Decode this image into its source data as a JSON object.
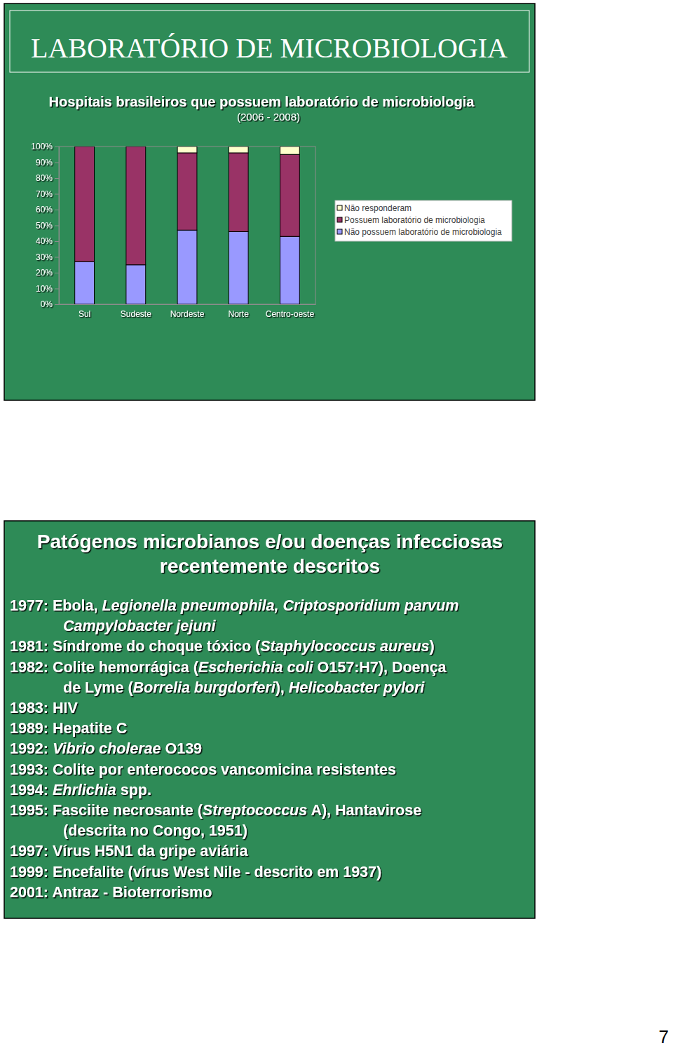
{
  "slide_header": "LABORATÓRIO DE MICROBIOLOGIA",
  "chart_data": {
    "type": "bar",
    "stacked": true,
    "title": "Hospitais brasileiros que possuem laboratório de microbiologia",
    "subtitle": "(2006 - 2008)",
    "categories": [
      "Sul",
      "Sudeste",
      "Nordeste",
      "Norte",
      "Centro-oeste"
    ],
    "series": [
      {
        "name": "Não responderam",
        "color": "#ffffcc",
        "values": [
          0,
          0,
          4,
          4,
          5
        ]
      },
      {
        "name": "Possuem laboratório de microbiologia",
        "color": "#993366",
        "values": [
          73,
          75,
          49,
          50,
          52
        ]
      },
      {
        "name": "Não possuem laboratório de microbiologia",
        "color": "#9999ff",
        "values": [
          27,
          25,
          47,
          46,
          43
        ]
      }
    ],
    "ylim": [
      0,
      100
    ],
    "yticks": [
      {
        "value": 0,
        "label": "0%"
      },
      {
        "value": 10,
        "label": "10%"
      },
      {
        "value": 20,
        "label": "20%"
      },
      {
        "value": 30,
        "label": "30%"
      },
      {
        "value": 40,
        "label": "40%"
      },
      {
        "value": 50,
        "label": "50%"
      },
      {
        "value": 60,
        "label": "60%"
      },
      {
        "value": 70,
        "label": "70%"
      },
      {
        "value": 80,
        "label": "80%"
      },
      {
        "value": 90,
        "label": "90%"
      },
      {
        "value": 100,
        "label": "100%"
      }
    ],
    "grid": false,
    "legend": "right"
  },
  "slide2": {
    "title": [
      "Patógenos microbianos e/ou doenças infecciosas",
      "recentemente descritos"
    ],
    "items": [
      {
        "lines": [
          [
            {
              "text": "1977: Ebola, "
            },
            {
              "text": "Legionella pneumophila, Criptosporidium parvum",
              "italic": true
            }
          ],
          [
            {
              "text": "Campylobacter jejuni",
              "italic": true
            }
          ]
        ]
      },
      {
        "lines": [
          [
            {
              "text": "1981: Síndrome do choque tóxico ("
            },
            {
              "text": "Staphylococcus aureus",
              "italic": true
            },
            {
              "text": ")"
            }
          ]
        ]
      },
      {
        "lines": [
          [
            {
              "text": "1982: Colite hemorrágica ("
            },
            {
              "text": "Escherichia coli",
              "italic": true
            },
            {
              "text": " O157:H7), Doença"
            }
          ],
          [
            {
              "text": "de Lyme ("
            },
            {
              "text": "Borrelia burgdorferi",
              "italic": true
            },
            {
              "text": "), "
            },
            {
              "text": "Helicobacter pylori",
              "italic": true
            }
          ]
        ]
      },
      {
        "lines": [
          [
            {
              "text": "1983: HIV"
            }
          ]
        ]
      },
      {
        "lines": [
          [
            {
              "text": "1989: Hepatite C"
            }
          ]
        ]
      },
      {
        "lines": [
          [
            {
              "text": "1992: "
            },
            {
              "text": "Vibrio cholerae",
              "italic": true
            },
            {
              "text": " O139"
            }
          ]
        ]
      },
      {
        "lines": [
          [
            {
              "text": "1993: Colite por enterococos vancomicina resistentes"
            }
          ]
        ]
      },
      {
        "lines": [
          [
            {
              "text": "1994: "
            },
            {
              "text": "Ehrlichia",
              "italic": true
            },
            {
              "text": " spp."
            }
          ]
        ]
      },
      {
        "lines": [
          [
            {
              "text": "1995: Fasciite necrosante ("
            },
            {
              "text": "Streptococcus",
              "italic": true
            },
            {
              "text": " A), Hantavirose"
            }
          ],
          [
            {
              "text": "(descrita no Congo, 1951)"
            }
          ]
        ]
      },
      {
        "lines": [
          [
            {
              "text": "1997: Vírus H5N1 da gripe aviária"
            }
          ]
        ]
      },
      {
        "lines": [
          [
            {
              "text": "1999: Encefalite (vírus West Nile - descrito em 1937)"
            }
          ]
        ]
      },
      {
        "lines": [
          [
            {
              "text": "2001: Antraz - Bioterrorismo"
            }
          ]
        ]
      }
    ]
  },
  "page_number": "7"
}
